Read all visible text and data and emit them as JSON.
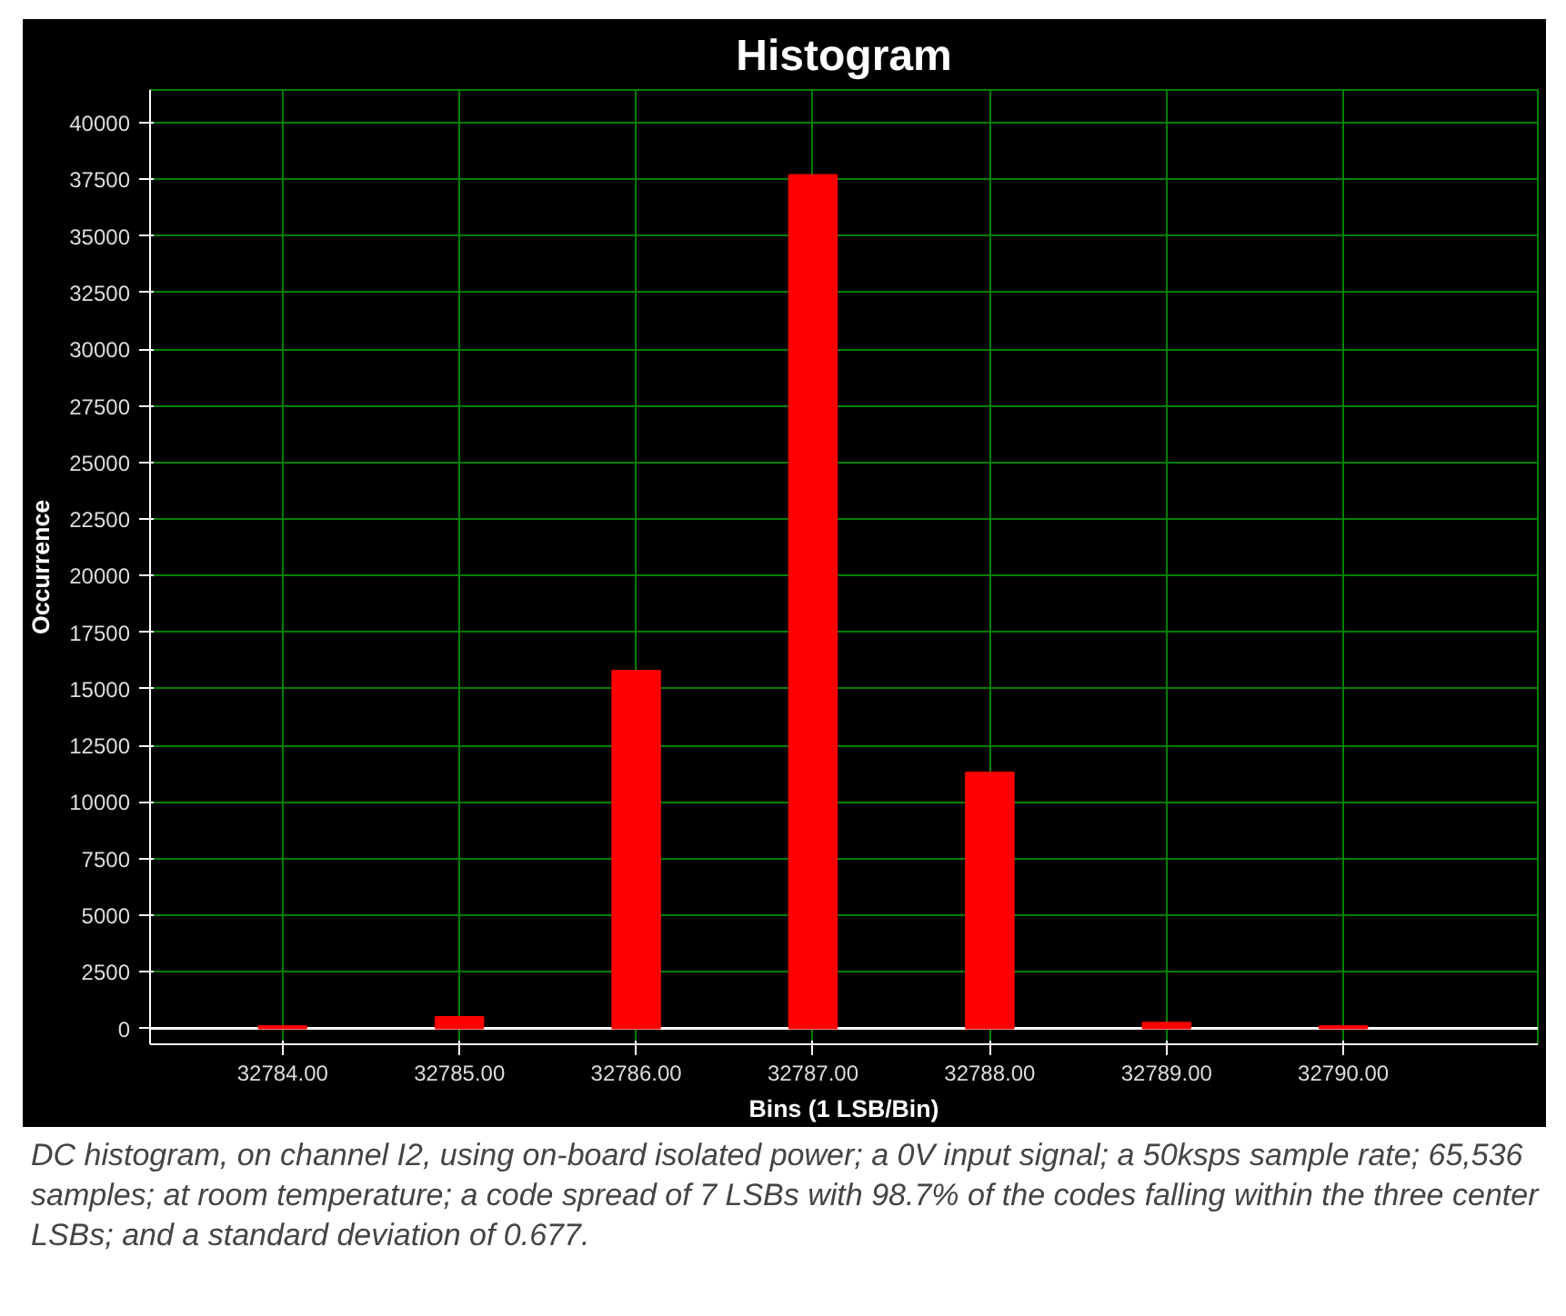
{
  "chart_data": {
    "type": "bar",
    "title": "Histogram",
    "xlabel": "Bins (1 LSB/Bin)",
    "ylabel": "Occurrence",
    "x": [
      32784,
      32785,
      32786,
      32787,
      32788,
      32789,
      32790
    ],
    "values": [
      100,
      500,
      15800,
      37700,
      11300,
      250,
      100
    ],
    "color": "#ff0000",
    "xlim": [
      32783.25,
      32791.1
    ],
    "xticks": [
      {
        "value": 32784,
        "label": "32784.00"
      },
      {
        "value": 32785,
        "label": "32785.00"
      },
      {
        "value": 32786,
        "label": "32786.00"
      },
      {
        "value": 32787,
        "label": "32787.00"
      },
      {
        "value": 32788,
        "label": "32788.00"
      },
      {
        "value": 32789,
        "label": "32789.00"
      },
      {
        "value": 32790,
        "label": "32790.00"
      }
    ],
    "ylim": [
      -700,
      41450
    ],
    "yticks": [
      0,
      2500,
      5000,
      7500,
      10000,
      12500,
      15000,
      17500,
      20000,
      22500,
      25000,
      27500,
      30000,
      32500,
      35000,
      37500,
      40000
    ],
    "grid": true,
    "ref_lines": [
      {
        "axis": "y",
        "value": 0,
        "color": "#ffffff"
      }
    ],
    "annotations": [
      "DC histogram, on channel I2, using on-board isolated power; a 0V input signal; a 50ksps sample rate; 65,536 samples; at room temperature; a code spread of 7 LSBs with 98.7% of the codes falling within the three center LSBs; and a standard deviation of  0.677."
    ]
  }
}
